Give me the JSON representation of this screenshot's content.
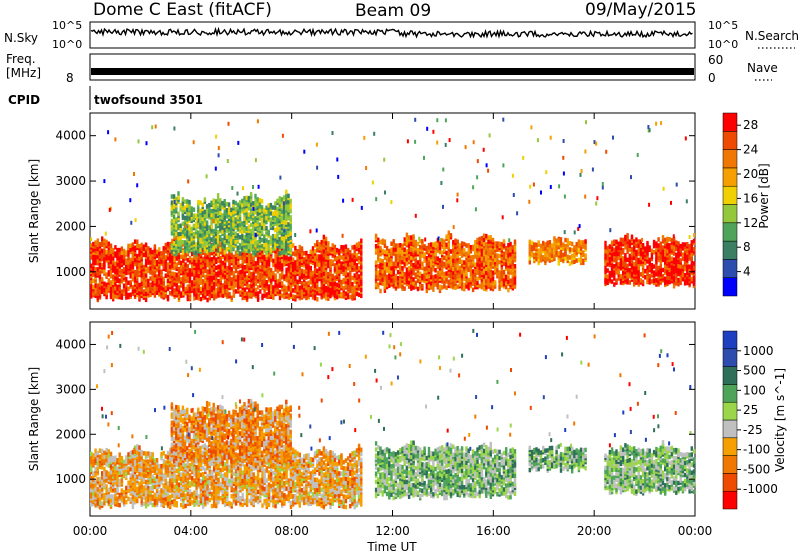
{
  "header": {
    "station": "Dome C East (fitACF)",
    "beam": "Beam 09",
    "date": "09/May/2015"
  },
  "top_strip": {
    "nsky_label": "N.Sky",
    "nsky_ticks": [
      "10^5",
      "10^0"
    ],
    "nsearch_label": "N.Search",
    "nsearch_ticks": [
      "10^5",
      "10^0"
    ],
    "freq_label": "Freq.",
    "freq_unit": "[MHz]",
    "freq_ticks": [
      "8"
    ],
    "nave_label": "Nave",
    "nave_ticks": [
      "60",
      "0"
    ],
    "cpid_label": "CPID",
    "cpid_value": "twofsound 3501"
  },
  "colors": {
    "power": [
      "#0000ff",
      "#2c4dad",
      "#3a7f63",
      "#4ea55a",
      "#93c83c",
      "#f0d000",
      "#f5a000",
      "#f07800",
      "#ee4a00",
      "#ff0000"
    ],
    "velocity": [
      "#ff0000",
      "#ee4a00",
      "#f07800",
      "#f5a000",
      "#c0c0c0",
      "#9ad54a",
      "#4ea55a",
      "#2f6f5a",
      "#2c4dad",
      "#1e3fbf"
    ]
  },
  "chart_data": [
    {
      "type": "heatmap",
      "title": "Power",
      "xlabel": "Time UT",
      "ylabel": "Slant Range [km]",
      "x_ticks": [
        "00:00",
        "04:00",
        "08:00",
        "12:00",
        "16:00",
        "20:00",
        "00:00"
      ],
      "xlim": [
        0,
        24
      ],
      "y_ticks": [
        "1000",
        "2000",
        "3000",
        "4000"
      ],
      "ylim": [
        180,
        4500
      ],
      "colorbar": {
        "label": "Power [dB]",
        "ticks": [
          "4",
          "8",
          "12",
          "16",
          "20",
          "24",
          "28"
        ],
        "range": [
          0,
          30
        ]
      },
      "echo_regions": [
        {
          "t0": 0.0,
          "t1": 10.8,
          "r0": 500,
          "r1": 1600,
          "level": 26
        },
        {
          "t0": 3.2,
          "t1": 8.0,
          "r0": 1500,
          "r1": 2600,
          "level": 12
        },
        {
          "t0": 11.3,
          "t1": 16.9,
          "r0": 700,
          "r1": 1700,
          "level": 24
        },
        {
          "t0": 17.4,
          "t1": 19.7,
          "r0": 1300,
          "r1": 1700,
          "level": 22
        },
        {
          "t0": 20.4,
          "t1": 24.0,
          "r0": 800,
          "r1": 1700,
          "level": 27
        }
      ]
    },
    {
      "type": "heatmap",
      "title": "Velocity",
      "xlabel": "Time UT",
      "ylabel": "Slant Range [km]",
      "x_ticks": [
        "00:00",
        "04:00",
        "08:00",
        "12:00",
        "16:00",
        "20:00",
        "00:00"
      ],
      "xlim": [
        0,
        24
      ],
      "y_ticks": [
        "1000",
        "2000",
        "3000",
        "4000"
      ],
      "ylim": [
        180,
        4500
      ],
      "colorbar": {
        "label": "Velocity [m s^-1]",
        "ticks": [
          "1000",
          "500",
          "100",
          "25",
          "-25",
          "-100",
          "-500",
          "-1000"
        ],
        "range": [
          -1000,
          1000
        ]
      },
      "echo_regions": [
        {
          "t0": 0.0,
          "t1": 10.8,
          "r0": 500,
          "r1": 1600,
          "level": -300
        },
        {
          "t0": 3.2,
          "t1": 8.0,
          "r0": 1500,
          "r1": 2600,
          "level": -400
        },
        {
          "t0": 11.3,
          "t1": 16.9,
          "r0": 700,
          "r1": 1700,
          "level": 150
        },
        {
          "t0": 17.4,
          "t1": 19.7,
          "r0": 1300,
          "r1": 1700,
          "level": 200
        },
        {
          "t0": 20.4,
          "t1": 24.0,
          "r0": 800,
          "r1": 1700,
          "level": 150
        }
      ]
    }
  ]
}
